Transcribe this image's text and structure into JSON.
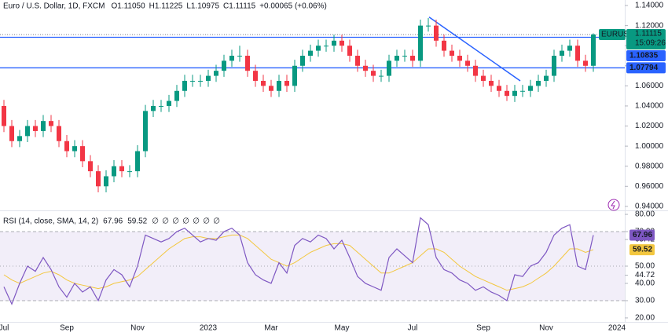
{
  "chart_data": [
    {
      "type": "candlestick",
      "title": "Euro / U.S. Dollar, 1D, FXCM",
      "header_values": [
        {
          "label": "O",
          "value": "1.11050"
        },
        {
          "label": "H",
          "value": "1.11225"
        },
        {
          "label": "L",
          "value": "1.10975"
        },
        {
          "label": "C",
          "value": "1.11115"
        },
        {
          "label": "",
          "value": "+0.00065 (+0.06%)"
        }
      ],
      "categories": [
        "Jul",
        null,
        null,
        null,
        null,
        null,
        null,
        null,
        "Sep",
        null,
        null,
        null,
        null,
        null,
        null,
        null,
        null,
        "Nov",
        null,
        null,
        null,
        null,
        null,
        null,
        null,
        null,
        "2023",
        null,
        null,
        null,
        null,
        null,
        null,
        null,
        "Mar",
        null,
        null,
        null,
        null,
        null,
        null,
        null,
        null,
        "May",
        null,
        null,
        null,
        null,
        null,
        null,
        null,
        null,
        "Jul",
        null,
        null,
        null,
        null,
        null,
        null,
        null,
        null,
        "Sep",
        null,
        null,
        null,
        null,
        null,
        null,
        null,
        "Nov",
        null,
        null,
        null,
        null,
        null,
        null,
        null,
        null,
        "2024"
      ],
      "open": [
        1.04,
        1.02,
        1.005,
        1.01,
        1.02,
        1.015,
        1.025,
        1.02,
        1.005,
        0.995,
        1.0,
        0.985,
        0.975,
        0.96,
        0.97,
        0.98,
        0.975,
        0.975,
        0.995,
        1.035,
        1.04,
        1.04,
        1.045,
        1.055,
        1.065,
        1.065,
        1.065,
        1.07,
        1.075,
        1.085,
        1.09,
        1.09,
        1.075,
        1.065,
        1.06,
        1.055,
        1.065,
        1.06,
        1.08,
        1.09,
        1.095,
        1.1,
        1.1,
        1.105,
        1.1,
        1.09,
        1.08,
        1.075,
        1.07,
        1.07,
        1.085,
        1.09,
        1.09,
        1.085,
        1.12,
        1.12,
        1.105,
        1.095,
        1.09,
        1.085,
        1.08,
        1.07,
        1.065,
        1.06,
        1.055,
        1.05,
        1.055,
        1.055,
        1.06,
        1.065,
        1.07,
        1.09,
        1.095,
        1.1,
        1.085,
        1.08,
        null,
        null,
        null
      ],
      "high": [
        1.046,
        1.026,
        1.016,
        1.026,
        1.026,
        1.031,
        1.031,
        1.026,
        1.011,
        1.006,
        1.006,
        0.991,
        0.981,
        0.976,
        0.986,
        0.986,
        0.981,
        1.001,
        1.041,
        1.046,
        1.046,
        1.051,
        1.061,
        1.071,
        1.071,
        1.071,
        1.076,
        1.081,
        1.091,
        1.096,
        1.1,
        1.096,
        1.081,
        1.071,
        1.066,
        1.071,
        1.071,
        1.086,
        1.096,
        1.101,
        1.106,
        1.106,
        1.111,
        1.111,
        1.106,
        1.096,
        1.086,
        1.081,
        1.076,
        1.091,
        1.096,
        1.096,
        1.096,
        1.126,
        1.1275,
        1.126,
        1.111,
        1.101,
        1.096,
        1.091,
        1.086,
        1.076,
        1.071,
        1.066,
        1.061,
        1.061,
        1.061,
        1.066,
        1.071,
        1.076,
        1.096,
        1.101,
        1.106,
        1.106,
        1.091,
        1.11225,
        null,
        null,
        null
      ],
      "low": [
        1.014,
        0.999,
        0.999,
        1.004,
        1.009,
        1.009,
        1.014,
        0.999,
        0.989,
        0.989,
        0.979,
        0.969,
        0.954,
        0.954,
        0.964,
        0.969,
        0.969,
        0.969,
        0.989,
        1.029,
        1.034,
        1.034,
        1.039,
        1.049,
        1.059,
        1.059,
        1.059,
        1.064,
        1.069,
        1.079,
        1.084,
        1.069,
        1.059,
        1.054,
        1.049,
        1.049,
        1.054,
        1.054,
        1.074,
        1.084,
        1.089,
        1.094,
        1.094,
        1.094,
        1.084,
        1.074,
        1.069,
        1.064,
        1.064,
        1.064,
        1.079,
        1.084,
        1.079,
        1.079,
        1.114,
        1.099,
        1.089,
        1.084,
        1.079,
        1.074,
        1.064,
        1.059,
        1.054,
        1.049,
        1.045,
        1.044,
        1.049,
        1.049,
        1.054,
        1.059,
        1.064,
        1.084,
        1.089,
        1.079,
        1.074,
        1.074,
        null,
        null,
        null
      ],
      "close": [
        1.02,
        1.005,
        1.01,
        1.02,
        1.015,
        1.025,
        1.02,
        1.005,
        0.995,
        1.0,
        0.985,
        0.975,
        0.96,
        0.97,
        0.98,
        0.975,
        0.975,
        0.995,
        1.035,
        1.04,
        1.04,
        1.045,
        1.055,
        1.065,
        1.065,
        1.065,
        1.07,
        1.075,
        1.085,
        1.09,
        1.09,
        1.075,
        1.065,
        1.06,
        1.055,
        1.065,
        1.06,
        1.08,
        1.09,
        1.095,
        1.1,
        1.1,
        1.105,
        1.1,
        1.09,
        1.08,
        1.075,
        1.07,
        1.07,
        1.085,
        1.09,
        1.09,
        1.085,
        1.12,
        1.12,
        1.105,
        1.095,
        1.09,
        1.085,
        1.08,
        1.07,
        1.065,
        1.06,
        1.055,
        1.05,
        1.055,
        1.055,
        1.06,
        1.065,
        1.07,
        1.09,
        1.095,
        1.1,
        1.085,
        1.08,
        1.11115,
        null,
        null,
        null
      ],
      "up_color": "#089981",
      "down_color": "#f23645",
      "ylim": [
        0.936,
        1.1455
      ],
      "yticks": [
        {
          "value": 0.94,
          "label": "0.94000"
        },
        {
          "value": 0.96,
          "label": "0.96000"
        },
        {
          "value": 0.98,
          "label": "0.98000"
        },
        {
          "value": 1.0,
          "label": "1.00000"
        },
        {
          "value": 1.02,
          "label": "1.02000"
        },
        {
          "value": 1.04,
          "label": "1.04000"
        },
        {
          "value": 1.06,
          "label": "1.06000"
        },
        {
          "value": 1.08,
          "label": "1.08000"
        },
        {
          "value": 1.1,
          "label": "1.10000"
        },
        {
          "value": 1.12,
          "label": "1.12000"
        },
        {
          "value": 1.14,
          "label": "1.14000"
        }
      ],
      "last_price": {
        "symbol": "EURUSD",
        "value": 1.11115,
        "countdown": "15:09:26",
        "color": "#089981"
      },
      "hlines": [
        {
          "value": 1.10835,
          "color": "#2962ff"
        },
        {
          "value": 1.07794,
          "color": "#2962ff"
        }
      ],
      "trendline": {
        "x": [
          54.1,
          65.7
        ],
        "y": [
          1.1285,
          1.065
        ],
        "color": "#2962ff"
      }
    },
    {
      "type": "line",
      "title": "RSI (14, close, SMA, 14, 2)",
      "placeholders": [
        "∅",
        "∅",
        "∅",
        "∅",
        "∅",
        "∅",
        "∅"
      ],
      "series": [
        {
          "name": "RSI",
          "color": "#7e57c2",
          "values": [
            38,
            28,
            40,
            50,
            47,
            55,
            48,
            38,
            32,
            40,
            35,
            38,
            30,
            42,
            48,
            45,
            38,
            50,
            68,
            66,
            64,
            66,
            70,
            72,
            68,
            64,
            66,
            65,
            70,
            72,
            68,
            52,
            45,
            42,
            40,
            52,
            46,
            62,
            66,
            64,
            68,
            66,
            60,
            65,
            55,
            44,
            40,
            38,
            36,
            55,
            60,
            56,
            52,
            78,
            74,
            55,
            48,
            46,
            42,
            40,
            36,
            38,
            35,
            33,
            30,
            45,
            44,
            50,
            52,
            58,
            68,
            72,
            74,
            50,
            48,
            67.96,
            null,
            null,
            null
          ]
        },
        {
          "name": "SMA",
          "color": "#f3c73f",
          "values": [
            45,
            42,
            40,
            42,
            44,
            46,
            47,
            45,
            42,
            40,
            39,
            38,
            37,
            38,
            40,
            41,
            42,
            44,
            48,
            52,
            56,
            60,
            63,
            66,
            67,
            67,
            66,
            66,
            67,
            68,
            68,
            66,
            62,
            58,
            54,
            52,
            50,
            52,
            55,
            58,
            60,
            62,
            63,
            63,
            62,
            58,
            54,
            50,
            46,
            46,
            48,
            50,
            52,
            56,
            60,
            60,
            58,
            54,
            50,
            47,
            44,
            42,
            40,
            38,
            36,
            37,
            38,
            40,
            43,
            46,
            50,
            55,
            60,
            60,
            58,
            59.52,
            null,
            null,
            null
          ]
        }
      ],
      "last_values": [
        67.96,
        59.52
      ],
      "ylim": [
        17.7,
        82.3
      ],
      "yticks": [
        {
          "value": 20,
          "label": "20.00"
        },
        {
          "value": 30,
          "label": "30.00"
        },
        {
          "value": 40,
          "label": "40.00"
        },
        {
          "value": 44.72,
          "label": "44.72"
        },
        {
          "value": 50,
          "label": "50.00"
        },
        {
          "value": 65.42,
          "label": "65.42"
        },
        {
          "value": 70,
          "label": "70.00"
        },
        {
          "value": 80,
          "label": "80.00"
        }
      ],
      "bands": [
        70,
        50,
        30
      ]
    }
  ]
}
